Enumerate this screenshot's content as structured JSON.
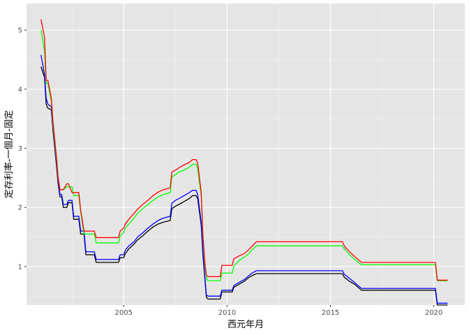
{
  "chart_data": {
    "type": "line",
    "title": "",
    "xlabel": "西元年月",
    "ylabel": "定存利率-一個月-固定",
    "xlim": [
      2000.3,
      2021.5
    ],
    "ylim": [
      0.35,
      5.45
    ],
    "x_ticks": [
      2005,
      2010,
      2015,
      2020
    ],
    "x_tick_labels": [
      "2005",
      "2010",
      "2015",
      "2020"
    ],
    "y_ticks": [
      1,
      2,
      3,
      4,
      5
    ],
    "y_tick_labels": [
      "1",
      "2",
      "3",
      "4",
      "5"
    ],
    "grid": true,
    "panel_background": "#e5e5e5",
    "legend": "none",
    "series": [
      {
        "color": "#000000",
        "points": [
          [
            2001.0,
            4.38
          ],
          [
            2001.17,
            4.2
          ],
          [
            2001.25,
            3.75
          ],
          [
            2001.33,
            3.68
          ],
          [
            2001.5,
            3.65
          ],
          [
            2001.58,
            3.3
          ],
          [
            2001.75,
            2.7
          ],
          [
            2001.83,
            2.4
          ],
          [
            2001.92,
            2.18
          ],
          [
            2002.0,
            2.18
          ],
          [
            2002.08,
            2.0
          ],
          [
            2002.25,
            2.0
          ],
          [
            2002.33,
            2.08
          ],
          [
            2002.5,
            2.08
          ],
          [
            2002.58,
            1.8
          ],
          [
            2002.83,
            1.8
          ],
          [
            2002.92,
            1.55
          ],
          [
            2003.08,
            1.55
          ],
          [
            2003.17,
            1.2
          ],
          [
            2003.58,
            1.2
          ],
          [
            2003.67,
            1.07
          ],
          [
            2004.75,
            1.07
          ],
          [
            2004.83,
            1.15
          ],
          [
            2005.0,
            1.15
          ],
          [
            2005.08,
            1.22
          ],
          [
            2005.25,
            1.3
          ],
          [
            2005.5,
            1.38
          ],
          [
            2005.67,
            1.45
          ],
          [
            2005.92,
            1.52
          ],
          [
            2006.17,
            1.6
          ],
          [
            2006.42,
            1.67
          ],
          [
            2006.67,
            1.72
          ],
          [
            2006.92,
            1.75
          ],
          [
            2007.25,
            1.78
          ],
          [
            2007.33,
            1.98
          ],
          [
            2007.5,
            2.02
          ],
          [
            2007.67,
            2.05
          ],
          [
            2007.92,
            2.1
          ],
          [
            2008.17,
            2.15
          ],
          [
            2008.33,
            2.2
          ],
          [
            2008.5,
            2.2
          ],
          [
            2008.58,
            2.15
          ],
          [
            2008.75,
            1.7
          ],
          [
            2008.83,
            1.2
          ],
          [
            2008.92,
            0.82
          ],
          [
            2009.0,
            0.48
          ],
          [
            2009.08,
            0.45
          ],
          [
            2009.67,
            0.45
          ],
          [
            2009.75,
            0.57
          ],
          [
            2010.25,
            0.57
          ],
          [
            2010.33,
            0.65
          ],
          [
            2010.58,
            0.7
          ],
          [
            2010.83,
            0.75
          ],
          [
            2011.0,
            0.8
          ],
          [
            2011.17,
            0.84
          ],
          [
            2011.42,
            0.88
          ],
          [
            2015.58,
            0.88
          ],
          [
            2015.67,
            0.82
          ],
          [
            2015.92,
            0.75
          ],
          [
            2016.17,
            0.7
          ],
          [
            2016.5,
            0.6
          ],
          [
            2020.08,
            0.6
          ],
          [
            2020.17,
            0.35
          ],
          [
            2020.67,
            0.35
          ]
        ]
      },
      {
        "color": "#0000ff",
        "points": [
          [
            2001.0,
            4.58
          ],
          [
            2001.17,
            4.25
          ],
          [
            2001.25,
            3.85
          ],
          [
            2001.33,
            3.75
          ],
          [
            2001.5,
            3.7
          ],
          [
            2001.58,
            3.35
          ],
          [
            2001.75,
            2.75
          ],
          [
            2001.83,
            2.45
          ],
          [
            2001.92,
            2.22
          ],
          [
            2002.0,
            2.22
          ],
          [
            2002.08,
            2.05
          ],
          [
            2002.25,
            2.05
          ],
          [
            2002.33,
            2.12
          ],
          [
            2002.5,
            2.12
          ],
          [
            2002.58,
            1.85
          ],
          [
            2002.83,
            1.85
          ],
          [
            2002.92,
            1.6
          ],
          [
            2003.08,
            1.6
          ],
          [
            2003.17,
            1.25
          ],
          [
            2003.58,
            1.25
          ],
          [
            2003.67,
            1.12
          ],
          [
            2004.75,
            1.12
          ],
          [
            2004.83,
            1.2
          ],
          [
            2005.0,
            1.2
          ],
          [
            2005.08,
            1.28
          ],
          [
            2005.25,
            1.35
          ],
          [
            2005.5,
            1.42
          ],
          [
            2005.67,
            1.5
          ],
          [
            2005.92,
            1.57
          ],
          [
            2006.17,
            1.65
          ],
          [
            2006.42,
            1.72
          ],
          [
            2006.67,
            1.78
          ],
          [
            2006.92,
            1.82
          ],
          [
            2007.25,
            1.85
          ],
          [
            2007.33,
            2.07
          ],
          [
            2007.5,
            2.12
          ],
          [
            2007.67,
            2.15
          ],
          [
            2007.92,
            2.2
          ],
          [
            2008.17,
            2.25
          ],
          [
            2008.33,
            2.29
          ],
          [
            2008.5,
            2.29
          ],
          [
            2008.58,
            2.22
          ],
          [
            2008.75,
            1.75
          ],
          [
            2008.83,
            1.25
          ],
          [
            2008.92,
            0.85
          ],
          [
            2009.0,
            0.52
          ],
          [
            2009.08,
            0.5
          ],
          [
            2009.67,
            0.5
          ],
          [
            2009.75,
            0.6
          ],
          [
            2010.25,
            0.6
          ],
          [
            2010.33,
            0.68
          ],
          [
            2010.58,
            0.73
          ],
          [
            2010.83,
            0.78
          ],
          [
            2011.0,
            0.83
          ],
          [
            2011.17,
            0.88
          ],
          [
            2011.42,
            0.93
          ],
          [
            2015.58,
            0.93
          ],
          [
            2015.67,
            0.87
          ],
          [
            2015.92,
            0.8
          ],
          [
            2016.17,
            0.73
          ],
          [
            2016.5,
            0.63
          ],
          [
            2020.08,
            0.63
          ],
          [
            2020.17,
            0.38
          ],
          [
            2020.67,
            0.38
          ]
        ]
      },
      {
        "color": "#00ff00",
        "points": [
          [
            2001.0,
            5.0
          ],
          [
            2001.17,
            4.65
          ],
          [
            2001.25,
            4.1
          ],
          [
            2001.33,
            4.1
          ],
          [
            2001.5,
            3.8
          ],
          [
            2001.58,
            3.4
          ],
          [
            2001.75,
            2.8
          ],
          [
            2001.83,
            2.5
          ],
          [
            2001.92,
            2.3
          ],
          [
            2002.0,
            2.3
          ],
          [
            2002.08,
            2.3
          ],
          [
            2002.25,
            2.35
          ],
          [
            2002.33,
            2.35
          ],
          [
            2002.5,
            2.35
          ],
          [
            2002.58,
            2.2
          ],
          [
            2002.83,
            2.2
          ],
          [
            2002.92,
            1.92
          ],
          [
            2003.08,
            1.55
          ],
          [
            2003.17,
            1.55
          ],
          [
            2003.58,
            1.55
          ],
          [
            2003.67,
            1.4
          ],
          [
            2004.75,
            1.4
          ],
          [
            2004.83,
            1.52
          ],
          [
            2005.0,
            1.57
          ],
          [
            2005.08,
            1.65
          ],
          [
            2005.25,
            1.72
          ],
          [
            2005.5,
            1.82
          ],
          [
            2005.67,
            1.9
          ],
          [
            2005.92,
            1.98
          ],
          [
            2006.17,
            2.05
          ],
          [
            2006.42,
            2.12
          ],
          [
            2006.67,
            2.18
          ],
          [
            2006.92,
            2.22
          ],
          [
            2007.25,
            2.25
          ],
          [
            2007.33,
            2.52
          ],
          [
            2007.5,
            2.55
          ],
          [
            2007.67,
            2.6
          ],
          [
            2007.92,
            2.63
          ],
          [
            2008.17,
            2.68
          ],
          [
            2008.33,
            2.73
          ],
          [
            2008.5,
            2.73
          ],
          [
            2008.58,
            2.65
          ],
          [
            2008.75,
            2.2
          ],
          [
            2008.83,
            1.5
          ],
          [
            2008.92,
            1.05
          ],
          [
            2009.0,
            0.8
          ],
          [
            2009.08,
            0.76
          ],
          [
            2009.67,
            0.76
          ],
          [
            2009.75,
            0.89
          ],
          [
            2010.25,
            0.89
          ],
          [
            2010.33,
            1.01
          ],
          [
            2010.58,
            1.1
          ],
          [
            2010.83,
            1.16
          ],
          [
            2011.0,
            1.2
          ],
          [
            2011.17,
            1.27
          ],
          [
            2011.42,
            1.35
          ],
          [
            2015.58,
            1.35
          ],
          [
            2015.67,
            1.3
          ],
          [
            2015.92,
            1.2
          ],
          [
            2016.17,
            1.12
          ],
          [
            2016.5,
            1.03
          ],
          [
            2020.08,
            1.03
          ],
          [
            2020.17,
            0.76
          ],
          [
            2020.67,
            0.76
          ]
        ]
      },
      {
        "color": "#ff0000",
        "points": [
          [
            2001.0,
            5.18
          ],
          [
            2001.17,
            4.88
          ],
          [
            2001.25,
            4.15
          ],
          [
            2001.33,
            4.15
          ],
          [
            2001.5,
            3.85
          ],
          [
            2001.58,
            3.45
          ],
          [
            2001.75,
            2.85
          ],
          [
            2001.83,
            2.5
          ],
          [
            2001.92,
            2.3
          ],
          [
            2002.0,
            2.3
          ],
          [
            2002.08,
            2.3
          ],
          [
            2002.25,
            2.4
          ],
          [
            2002.33,
            2.4
          ],
          [
            2002.5,
            2.25
          ],
          [
            2002.58,
            2.25
          ],
          [
            2002.83,
            2.25
          ],
          [
            2002.92,
            1.95
          ],
          [
            2003.08,
            1.6
          ],
          [
            2003.17,
            1.6
          ],
          [
            2003.58,
            1.6
          ],
          [
            2003.67,
            1.49
          ],
          [
            2004.75,
            1.49
          ],
          [
            2004.83,
            1.6
          ],
          [
            2005.0,
            1.65
          ],
          [
            2005.08,
            1.72
          ],
          [
            2005.25,
            1.8
          ],
          [
            2005.5,
            1.9
          ],
          [
            2005.67,
            1.97
          ],
          [
            2005.92,
            2.05
          ],
          [
            2006.17,
            2.12
          ],
          [
            2006.42,
            2.2
          ],
          [
            2006.67,
            2.26
          ],
          [
            2006.92,
            2.3
          ],
          [
            2007.25,
            2.33
          ],
          [
            2007.33,
            2.6
          ],
          [
            2007.5,
            2.63
          ],
          [
            2007.67,
            2.67
          ],
          [
            2007.92,
            2.72
          ],
          [
            2008.17,
            2.76
          ],
          [
            2008.33,
            2.81
          ],
          [
            2008.5,
            2.81
          ],
          [
            2008.58,
            2.75
          ],
          [
            2008.75,
            2.25
          ],
          [
            2008.83,
            1.55
          ],
          [
            2008.92,
            1.1
          ],
          [
            2009.0,
            0.85
          ],
          [
            2009.08,
            0.83
          ],
          [
            2009.67,
            0.83
          ],
          [
            2009.75,
            1.02
          ],
          [
            2010.25,
            1.02
          ],
          [
            2010.33,
            1.13
          ],
          [
            2010.58,
            1.18
          ],
          [
            2010.83,
            1.22
          ],
          [
            2011.0,
            1.27
          ],
          [
            2011.17,
            1.33
          ],
          [
            2011.42,
            1.42
          ],
          [
            2015.58,
            1.42
          ],
          [
            2015.67,
            1.35
          ],
          [
            2015.92,
            1.25
          ],
          [
            2016.17,
            1.17
          ],
          [
            2016.5,
            1.07
          ],
          [
            2020.08,
            1.07
          ],
          [
            2020.17,
            0.77
          ],
          [
            2020.67,
            0.77
          ]
        ]
      }
    ]
  }
}
